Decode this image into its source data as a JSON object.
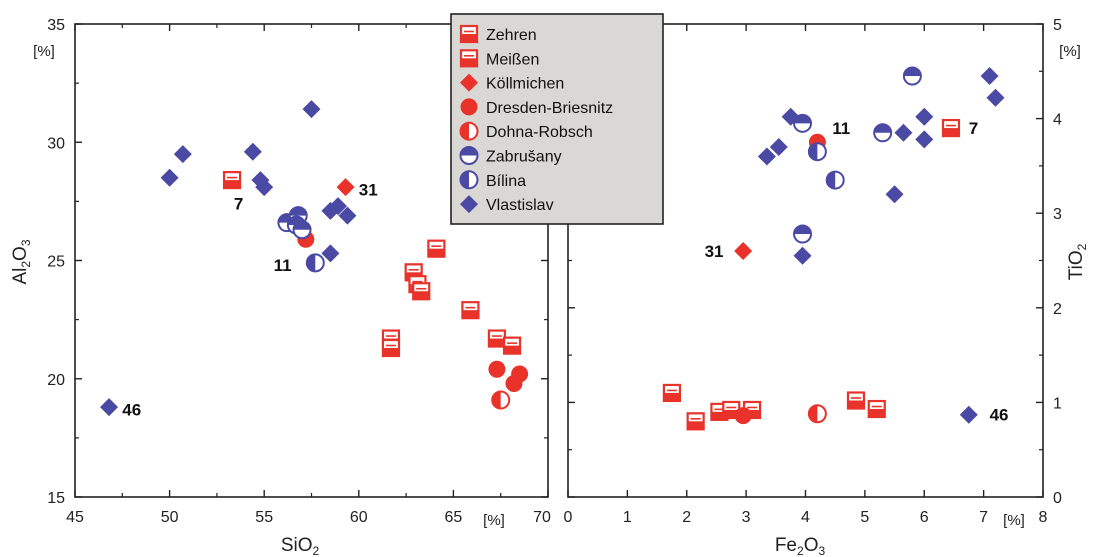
{
  "colors": {
    "red": "#e8322a",
    "blue": "#4a4aa4",
    "legend_bg": "#d9d8d4"
  },
  "legend": [
    {
      "label": "Zehren",
      "marker": "square-half-bottom",
      "color": "red"
    },
    {
      "label": "Meißen",
      "marker": "square-half-bottom",
      "color": "red"
    },
    {
      "label": "Köllmichen",
      "marker": "diamond",
      "color": "red"
    },
    {
      "label": "Dresden-Briesnitz",
      "marker": "circle",
      "color": "red"
    },
    {
      "label": "Dohna-Robsch",
      "marker": "circle-half-left",
      "color": "red"
    },
    {
      "label": "Zabrušany",
      "marker": "circle-half-top",
      "color": "blue"
    },
    {
      "label": "Bílina",
      "marker": "circle-half-left",
      "color": "blue"
    },
    {
      "label": "Vlastislav",
      "marker": "diamond",
      "color": "blue"
    }
  ],
  "chart_data": [
    {
      "type": "scatter",
      "xlabel": "SiO",
      "xlabel_sub": "2",
      "ylabel": "Al",
      "ylabel_sub1": "2",
      "ylabel_mid": "O",
      "ylabel_sub2": "3",
      "x_unit": "[%]",
      "y_unit": "[%]",
      "xlim": [
        45,
        70
      ],
      "ylim": [
        15,
        35
      ],
      "xticks": [
        "45",
        "50",
        "55",
        "60",
        "65",
        "70"
      ],
      "yticks": [
        "15",
        "20",
        "25",
        "30",
        "35"
      ],
      "grid": false,
      "points": [
        {
          "x": 53.3,
          "y": 28.4,
          "series": "Zehren"
        },
        {
          "x": 62.9,
          "y": 24.5,
          "series": "Zehren"
        },
        {
          "x": 63.1,
          "y": 24.0,
          "series": "Zehren"
        },
        {
          "x": 63.3,
          "y": 23.7,
          "series": "Zehren"
        },
        {
          "x": 64.1,
          "y": 25.5,
          "series": "Zehren"
        },
        {
          "x": 65.9,
          "y": 22.9,
          "series": "Zehren"
        },
        {
          "x": 67.3,
          "y": 21.7,
          "series": "Zehren"
        },
        {
          "x": 68.1,
          "y": 21.4,
          "series": "Zehren"
        },
        {
          "x": 61.7,
          "y": 21.7,
          "series": "Meißen"
        },
        {
          "x": 61.7,
          "y": 21.3,
          "series": "Meißen"
        },
        {
          "x": 59.3,
          "y": 28.1,
          "series": "Köllmichen"
        },
        {
          "x": 57.2,
          "y": 25.9,
          "series": "Dresden-Briesnitz"
        },
        {
          "x": 67.3,
          "y": 20.4,
          "series": "Dresden-Briesnitz"
        },
        {
          "x": 68.5,
          "y": 20.2,
          "series": "Dresden-Briesnitz"
        },
        {
          "x": 68.2,
          "y": 19.8,
          "series": "Dresden-Briesnitz"
        },
        {
          "x": 67.5,
          "y": 19.1,
          "series": "Dohna-Robsch"
        },
        {
          "x": 56.2,
          "y": 26.6,
          "series": "Zabrušany"
        },
        {
          "x": 56.8,
          "y": 26.9,
          "series": "Zabrušany"
        },
        {
          "x": 56.7,
          "y": 26.5,
          "series": "Zabrušany"
        },
        {
          "x": 57.0,
          "y": 26.3,
          "series": "Zabrušany"
        },
        {
          "x": 57.7,
          "y": 24.9,
          "series": "Bílina"
        },
        {
          "x": 50.0,
          "y": 28.5,
          "series": "Vlastislav"
        },
        {
          "x": 50.7,
          "y": 29.5,
          "series": "Vlastislav"
        },
        {
          "x": 54.4,
          "y": 29.6,
          "series": "Vlastislav"
        },
        {
          "x": 54.8,
          "y": 28.4,
          "series": "Vlastislav"
        },
        {
          "x": 55.0,
          "y": 28.1,
          "series": "Vlastislav"
        },
        {
          "x": 57.5,
          "y": 31.4,
          "series": "Vlastislav"
        },
        {
          "x": 58.5,
          "y": 27.1,
          "series": "Vlastislav"
        },
        {
          "x": 58.9,
          "y": 27.3,
          "series": "Vlastislav"
        },
        {
          "x": 59.4,
          "y": 26.9,
          "series": "Vlastislav"
        },
        {
          "x": 58.5,
          "y": 25.3,
          "series": "Vlastislav"
        },
        {
          "x": 46.8,
          "y": 18.8,
          "series": "Vlastislav"
        }
      ],
      "annotations": [
        {
          "text": "7",
          "x": 53.4,
          "y": 27.4
        },
        {
          "text": "31",
          "x": 60.0,
          "y": 28.0
        },
        {
          "text": "11",
          "x": 55.5,
          "y": 24.8
        },
        {
          "text": "46",
          "x": 47.5,
          "y": 18.7
        }
      ]
    },
    {
      "type": "scatter",
      "xlabel": "Fe",
      "xlabel_sub1": "2",
      "xlabel_mid": "O",
      "xlabel_sub2": "3",
      "ylabel": "TiO",
      "ylabel_sub": "2",
      "x_unit": "[%]",
      "y_unit": "[%]",
      "xlim": [
        0,
        8
      ],
      "ylim": [
        0,
        5
      ],
      "xticks": [
        "0",
        "1",
        "2",
        "3",
        "4",
        "5",
        "6",
        "7",
        "8"
      ],
      "yticks": [
        "0",
        "1",
        "2",
        "3",
        "4",
        "5"
      ],
      "grid": false,
      "points": [
        {
          "x": 1.75,
          "y": 1.1,
          "series": "Zehren"
        },
        {
          "x": 2.15,
          "y": 0.8,
          "series": "Zehren"
        },
        {
          "x": 2.55,
          "y": 0.9,
          "series": "Zehren"
        },
        {
          "x": 2.75,
          "y": 0.92,
          "series": "Zehren"
        },
        {
          "x": 3.1,
          "y": 0.92,
          "series": "Zehren"
        },
        {
          "x": 4.85,
          "y": 1.02,
          "series": "Zehren"
        },
        {
          "x": 5.2,
          "y": 0.93,
          "series": "Zehren"
        },
        {
          "x": 6.45,
          "y": 3.9,
          "series": "Zehren"
        },
        {
          "x": 2.95,
          "y": 2.6,
          "series": "Köllmichen"
        },
        {
          "x": 2.95,
          "y": 0.86,
          "series": "Dresden-Briesnitz"
        },
        {
          "x": 4.2,
          "y": 3.75,
          "series": "Dresden-Briesnitz"
        },
        {
          "x": 4.2,
          "y": 0.88,
          "series": "Dohna-Robsch"
        },
        {
          "x": 3.95,
          "y": 3.95,
          "series": "Zabrušany"
        },
        {
          "x": 3.95,
          "y": 2.78,
          "series": "Zabrušany"
        },
        {
          "x": 5.3,
          "y": 3.85,
          "series": "Zabrušany"
        },
        {
          "x": 5.8,
          "y": 4.45,
          "series": "Zabrušany"
        },
        {
          "x": 4.2,
          "y": 3.65,
          "series": "Bílina"
        },
        {
          "x": 4.5,
          "y": 3.35,
          "series": "Bílina"
        },
        {
          "x": 3.35,
          "y": 3.6,
          "series": "Vlastislav"
        },
        {
          "x": 3.55,
          "y": 3.7,
          "series": "Vlastislav"
        },
        {
          "x": 3.75,
          "y": 4.02,
          "series": "Vlastislav"
        },
        {
          "x": 3.95,
          "y": 2.55,
          "series": "Vlastislav"
        },
        {
          "x": 5.5,
          "y": 3.2,
          "series": "Vlastislav"
        },
        {
          "x": 5.65,
          "y": 3.85,
          "series": "Vlastislav"
        },
        {
          "x": 6.0,
          "y": 4.02,
          "series": "Vlastislav"
        },
        {
          "x": 6.0,
          "y": 3.78,
          "series": "Vlastislav"
        },
        {
          "x": 7.1,
          "y": 4.45,
          "series": "Vlastislav"
        },
        {
          "x": 7.2,
          "y": 4.22,
          "series": "Vlastislav"
        },
        {
          "x": 6.75,
          "y": 0.87,
          "series": "Vlastislav"
        }
      ],
      "annotations": [
        {
          "text": "11",
          "x": 4.45,
          "y": 3.9
        },
        {
          "text": "31",
          "x": 2.3,
          "y": 2.6
        },
        {
          "text": "7",
          "x": 6.75,
          "y": 3.9
        },
        {
          "text": "46",
          "x": 7.1,
          "y": 0.87
        }
      ]
    }
  ]
}
